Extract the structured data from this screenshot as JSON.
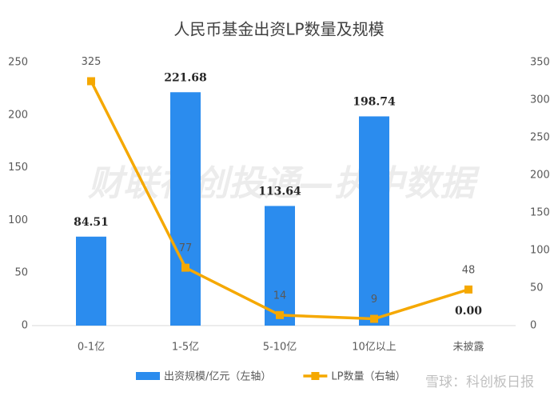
{
  "chart_data": {
    "type": "bar",
    "title": "人民币基金出资LP数量及规模",
    "categories": [
      "0-1亿",
      "1-5亿",
      "5-10亿",
      "10亿以上",
      "未披露"
    ],
    "series": [
      {
        "name": "出资规模/亿元（左轴）",
        "type": "bar",
        "color": "#2b8cee",
        "values": [
          84.51,
          221.68,
          113.64,
          198.74,
          0
        ],
        "value_labels": [
          "84.51",
          "221.68",
          "113.64",
          "198.74",
          "0.00"
        ]
      },
      {
        "name": "LP数量（右轴）",
        "type": "line",
        "axis": "y2",
        "color": "#f5a800",
        "values": [
          325,
          77,
          14,
          9,
          48
        ]
      }
    ],
    "ylim": [
      0,
      250
    ],
    "yticks": [
      0,
      50,
      100,
      150,
      200,
      250
    ],
    "y2lim": [
      0,
      350
    ],
    "y2ticks": [
      0,
      50,
      100,
      150,
      200,
      250,
      300,
      350
    ],
    "grid": false,
    "watermark": "财联社创投通—执中数据",
    "source_watermark": "雪球：科创板日报"
  }
}
